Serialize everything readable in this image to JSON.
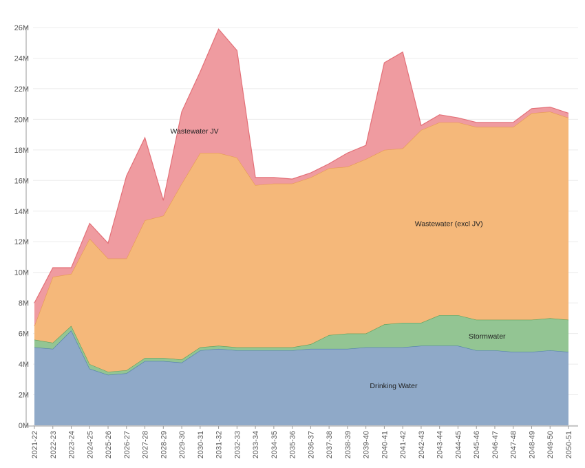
{
  "chart_data": {
    "type": "area",
    "stacked": true,
    "title": "",
    "xlabel": "",
    "ylabel": "",
    "ylim": [
      0,
      26
    ],
    "y_ticks": [
      0,
      2,
      4,
      6,
      8,
      10,
      12,
      14,
      16,
      18,
      20,
      22,
      24,
      26
    ],
    "y_tick_labels": [
      "0M",
      "2M",
      "4M",
      "6M",
      "8M",
      "10M",
      "12M",
      "14M",
      "16M",
      "18M",
      "20M",
      "22M",
      "24M",
      "26M"
    ],
    "grid": true,
    "legend": "none (series labelled inside areas)",
    "categories": [
      "2021-22",
      "2022-23",
      "2023-24",
      "2024-25",
      "2025-26",
      "2026-27",
      "2027-28",
      "2028-29",
      "2029-30",
      "2030-31",
      "2031-32",
      "2032-33",
      "2033-34",
      "2034-35",
      "2035-36",
      "2036-37",
      "2037-38",
      "2038-39",
      "2039-40",
      "2040-41",
      "2041-42",
      "2042-43",
      "2043-44",
      "2044-45",
      "2045-46",
      "2046-47",
      "2047-48",
      "2048-49",
      "2049-50",
      "2050-51"
    ],
    "series": [
      {
        "name": "Drinking Water",
        "color": "#8fa9c8",
        "line_color": "#4f7fab",
        "values": [
          5.1,
          5.0,
          6.2,
          3.7,
          3.3,
          3.4,
          4.2,
          4.2,
          4.1,
          4.9,
          5.0,
          4.9,
          4.9,
          4.9,
          4.9,
          5.0,
          5.0,
          5.0,
          5.1,
          5.1,
          5.1,
          5.2,
          5.2,
          5.2,
          4.9,
          4.9,
          4.8,
          4.8,
          4.9,
          4.8
        ]
      },
      {
        "name": "Stormwater",
        "color": "#93c593",
        "line_color": "#5aa05a",
        "values": [
          0.5,
          0.4,
          0.3,
          0.3,
          0.2,
          0.2,
          0.2,
          0.2,
          0.2,
          0.2,
          0.2,
          0.2,
          0.2,
          0.2,
          0.2,
          0.3,
          0.9,
          1.0,
          0.9,
          1.5,
          1.6,
          1.5,
          2.0,
          2.0,
          2.0,
          2.0,
          2.1,
          2.1,
          2.1,
          2.1
        ]
      },
      {
        "name": "Wastewater (excl JV)",
        "color": "#f5b87a",
        "line_color": "#e69a52",
        "values": [
          0.9,
          4.3,
          3.4,
          8.2,
          7.4,
          7.3,
          9.0,
          9.3,
          11.5,
          12.7,
          12.6,
          12.4,
          10.6,
          10.7,
          10.7,
          10.9,
          10.9,
          10.9,
          11.4,
          11.4,
          11.4,
          12.6,
          12.6,
          12.6,
          12.6,
          12.6,
          12.6,
          13.5,
          13.5,
          13.2
        ]
      },
      {
        "name": "Wastewater JV",
        "color": "#ef9ba0",
        "line_color": "#e37078",
        "values": [
          1.5,
          0.6,
          0.4,
          1.0,
          1.0,
          5.4,
          5.4,
          1.0,
          4.7,
          5.3,
          8.1,
          7.0,
          0.5,
          0.4,
          0.3,
          0.3,
          0.3,
          0.9,
          0.9,
          5.7,
          6.3,
          0.3,
          0.5,
          0.3,
          0.3,
          0.3,
          0.3,
          0.3,
          0.3,
          0.3
        ]
      }
    ]
  }
}
